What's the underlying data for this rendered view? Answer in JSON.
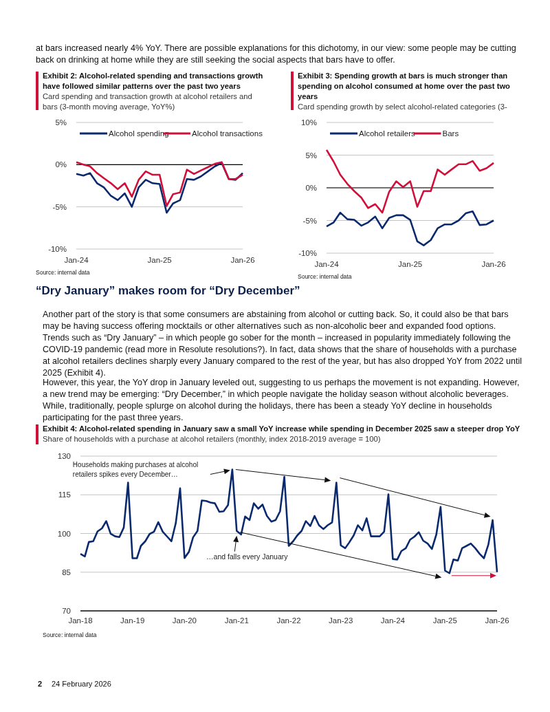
{
  "chart_data": [
    {
      "type": "other",
      "annotations": [
        "at bars increased nearly 4% YoY. There are possible explanations for this dichotomy, in our view: some people may be cutting back on drinking at home while they are still seeking the social aspects that bars have to offer."
      ]
    },
    {
      "type": "line",
      "title": "Exhibit 2: Alcohol-related spending and transactions growth have followed similar patterns over the past two years",
      "subtitle": "Card spending and transaction growth at alcohol retailers and bars (3-month moving average, YoY%)",
      "x": [
        "2024-01",
        "2024-02",
        "2024-03",
        "2024-04",
        "2024-05",
        "2024-06",
        "2024-07",
        "2024-08",
        "2024-09",
        "2024-10",
        "2024-11",
        "2024-12",
        "2025-01",
        "2025-02",
        "2025-03",
        "2025-04",
        "2025-05",
        "2025-06",
        "2025-07",
        "2025-08",
        "2025-09",
        "2025-10",
        "2025-11",
        "2025-12",
        "2026-01"
      ],
      "series": [
        {
          "name": "Alcohol spending",
          "color": "#0b2a6e",
          "values": [
            -1.1,
            -1.3,
            -1.0,
            -2.2,
            -2.7,
            -3.7,
            -4.2,
            -3.4,
            -5.0,
            -2.7,
            -1.8,
            -2.2,
            -2.3,
            -5.7,
            -4.6,
            -4.2,
            -1.7,
            -1.8,
            -1.4,
            -0.8,
            -0.2,
            0.2,
            -1.7,
            -1.8,
            -1.0
          ]
        },
        {
          "name": "Alcohol transactions",
          "color": "#d0103a",
          "values": [
            0.3,
            0,
            -0.2,
            -1.0,
            -1.6,
            -2.2,
            -2.9,
            -2.2,
            -3.8,
            -1.8,
            -0.8,
            -1.2,
            -1.2,
            -4.9,
            -3.5,
            -3.3,
            -0.6,
            -1.1,
            -0.7,
            -0.3,
            0.1,
            0.3,
            -1.7,
            -1.7,
            -1.2
          ]
        }
      ],
      "xlim": [
        "2024-01",
        "2026-01"
      ],
      "xticks": [
        {
          "value": "2024-01",
          "label": "Jan-24"
        },
        {
          "value": "2025-01",
          "label": "Jan-25"
        },
        {
          "value": "2026-01",
          "label": "Jan-26"
        }
      ],
      "ylim": [
        -10,
        5
      ],
      "yticks": [
        {
          "value": -10,
          "label": "-10%"
        },
        {
          "value": -5,
          "label": "-5%"
        },
        {
          "value": 0,
          "label": "0%"
        },
        {
          "value": 5,
          "label": "5%"
        }
      ],
      "ref_lines": [
        {
          "axis": "y",
          "value": 0,
          "color": "#000000"
        }
      ],
      "grid": "y",
      "legend": "top",
      "marker": "none",
      "line_style": "solid",
      "annotations": [
        "Source: internal data"
      ]
    },
    {
      "type": "line",
      "title": "Exhibit 3: Spending growth at bars is much stronger than spending on alcohol consumed at home over the past two years",
      "subtitle": "Card spending growth by select alcohol-related categories (3-month moving average, YoY%)",
      "x": [
        "2024-01",
        "2024-02",
        "2024-03",
        "2024-04",
        "2024-05",
        "2024-06",
        "2024-07",
        "2024-08",
        "2024-09",
        "2024-10",
        "2024-11",
        "2024-12",
        "2025-01",
        "2025-02",
        "2025-03",
        "2025-04",
        "2025-05",
        "2025-06",
        "2025-07",
        "2025-08",
        "2025-09",
        "2025-10",
        "2025-11",
        "2025-12",
        "2026-01"
      ],
      "series": [
        {
          "name": "Alcohol retailers",
          "color": "#0b2a6e",
          "values": [
            -5.9,
            -5.3,
            -3.8,
            -4.8,
            -4.9,
            -5.8,
            -5.3,
            -4.4,
            -6.2,
            -4.6,
            -4.2,
            -4.2,
            -4.9,
            -8.2,
            -8.8,
            -8.0,
            -6.2,
            -5.6,
            -5.6,
            -5.0,
            -3.9,
            -3.6,
            -5.7,
            -5.6,
            -5.0
          ]
        },
        {
          "name": "Bars",
          "color": "#d0103a",
          "values": [
            5.8,
            4.0,
            2.0,
            0.6,
            -0.5,
            -1.5,
            -3.1,
            -2.5,
            -3.8,
            -0.6,
            1.0,
            0.1,
            1.0,
            -2.9,
            -0.5,
            -0.5,
            2.8,
            2.0,
            2.8,
            3.6,
            3.6,
            4.1,
            2.6,
            3.0,
            3.8
          ]
        }
      ],
      "xlim": [
        "2024-01",
        "2026-01"
      ],
      "xticks": [
        {
          "value": "2024-01",
          "label": "Jan-24"
        },
        {
          "value": "2025-01",
          "label": "Jan-25"
        },
        {
          "value": "2026-01",
          "label": "Jan-26"
        }
      ],
      "ylim": [
        -10,
        10
      ],
      "yticks": [
        {
          "value": -10,
          "label": "-10%"
        },
        {
          "value": -5,
          "label": "-5%"
        },
        {
          "value": 0,
          "label": "0%"
        },
        {
          "value": 5,
          "label": "5%"
        },
        {
          "value": 10,
          "label": "10%"
        }
      ],
      "ref_lines": [
        {
          "axis": "y",
          "value": 0,
          "color": "#000000"
        }
      ],
      "grid": "y",
      "legend": "top",
      "marker": "none",
      "line_style": "solid",
      "annotations": [
        "Source: internal data"
      ]
    },
    {
      "type": "other",
      "title": "“Dry January” makes room for “Dry December”",
      "annotations": [
        "Another part of the story is that some consumers are abstaining from alcohol or cutting back. So, it could also be that bars may be having success offering mocktails or other alternatives such as non-alcoholic beer and expanded food options. Trends such as “Dry January” – in which people go sober for the month – increased in popularity immediately following the COVID-19 pandemic (read more in Resolute resolutions?). In fact, data shows that the share of households with a purchase at alcohol retailers declines sharply every January compared to the rest of the year, but has also dropped YoY from 2022 until 2025 (Exhibit 4).",
        "However, this year, the YoY drop in January leveled out, suggesting to us perhaps the movement is not expanding. However, a new trend may be emerging: “Dry December,” in which people navigate the holiday season without alcoholic beverages. While, traditionally, people splurge on alcohol during the holidays, there has been a steady YoY decline in households participating for the past three years."
      ]
    },
    {
      "type": "line",
      "title": "Exhibit 4: Alcohol-related spending in January saw a small YoY increase while spending in December 2025 saw a steeper drop YoY",
      "subtitle": "Share of households with a purchase at alcohol retailers (monthly, index 2018-2019 average = 100)",
      "x": [
        "2018-01",
        "2018-02",
        "2018-03",
        "2018-04",
        "2018-05",
        "2018-06",
        "2018-07",
        "2018-08",
        "2018-09",
        "2018-10",
        "2018-11",
        "2018-12",
        "2019-01",
        "2019-02",
        "2019-03",
        "2019-04",
        "2019-05",
        "2019-06",
        "2019-07",
        "2019-08",
        "2019-09",
        "2019-10",
        "2019-11",
        "2019-12",
        "2020-01",
        "2020-02",
        "2020-03",
        "2020-04",
        "2020-05",
        "2020-06",
        "2020-07",
        "2020-08",
        "2020-09",
        "2020-10",
        "2020-11",
        "2020-12",
        "2021-01",
        "2021-02",
        "2021-03",
        "2021-04",
        "2021-05",
        "2021-06",
        "2021-07",
        "2021-08",
        "2021-09",
        "2021-10",
        "2021-11",
        "2021-12",
        "2022-01",
        "2022-02",
        "2022-03",
        "2022-04",
        "2022-05",
        "2022-06",
        "2022-07",
        "2022-08",
        "2022-09",
        "2022-10",
        "2022-11",
        "2022-12",
        "2023-01",
        "2023-02",
        "2023-03",
        "2023-04",
        "2023-05",
        "2023-06",
        "2023-07",
        "2023-08",
        "2023-09",
        "2023-10",
        "2023-11",
        "2023-12",
        "2024-01",
        "2024-02",
        "2024-03",
        "2024-04",
        "2024-05",
        "2024-06",
        "2024-07",
        "2024-08",
        "2024-09",
        "2024-10",
        "2024-11",
        "2024-12",
        "2025-01",
        "2025-02",
        "2025-03",
        "2025-04",
        "2025-05",
        "2025-06",
        "2025-07",
        "2025-08",
        "2025-09",
        "2025-10",
        "2025-11",
        "2025-12",
        "2026-01"
      ],
      "series": [
        {
          "color": "#0b2a6e",
          "values": [
            92.1,
            91.1,
            96.7,
            97.0,
            100.8,
            102.0,
            104.8,
            99.9,
            98.9,
            98.6,
            102.3,
            119.7,
            90.4,
            90.4,
            95.2,
            97.0,
            99.8,
            100.7,
            104.4,
            100.7,
            98.8,
            97.0,
            104.1,
            117.5,
            90.5,
            92.9,
            98.5,
            101.0,
            112.8,
            112.6,
            112.0,
            111.7,
            108.4,
            108.6,
            111.0,
            124.8,
            101.0,
            99.6,
            106.6,
            105.2,
            111.7,
            109.6,
            111.2,
            106.8,
            104.6,
            105.2,
            108.6,
            122.0,
            95.2,
            97.0,
            99.2,
            101.0,
            104.8,
            102.9,
            106.8,
            103.2,
            101.7,
            103.2,
            104.3,
            119.7,
            95.4,
            94.3,
            96.5,
            99.2,
            103.2,
            101.2,
            105.9,
            98.9,
            98.9,
            98.9,
            100.7,
            115.2,
            90.1,
            89.9,
            93.2,
            94.3,
            97.6,
            98.8,
            100.5,
            97.2,
            96.1,
            94.0,
            99.6,
            110.3,
            85.6,
            84.6,
            89.9,
            89.5,
            94.3,
            95.2,
            96.1,
            94.3,
            92.1,
            90.4,
            95.7,
            105.2,
            85.0
          ]
        }
      ],
      "xlim": [
        "2018-01",
        "2026-01"
      ],
      "xticks": [
        {
          "value": "2018-01",
          "label": "Jan-18"
        },
        {
          "value": "2019-01",
          "label": "Jan-19"
        },
        {
          "value": "2020-01",
          "label": "Jan-20"
        },
        {
          "value": "2021-01",
          "label": "Jan-21"
        },
        {
          "value": "2022-01",
          "label": "Jan-22"
        },
        {
          "value": "2023-01",
          "label": "Jan-23"
        },
        {
          "value": "2024-01",
          "label": "Jan-24"
        },
        {
          "value": "2025-01",
          "label": "Jan-25"
        },
        {
          "value": "2026-01",
          "label": "Jan-26"
        }
      ],
      "ylim": [
        70,
        130
      ],
      "yticks": [
        70,
        85,
        100,
        115,
        130
      ],
      "grid": "y",
      "marker": "none",
      "line_style": "solid",
      "annotations": [
        "Households making purchases at alcohol retailers spikes every December…",
        {
          "text": "…and falls every January",
          "x": "2021-01",
          "y": 101.0
        },
        "Source: internal data"
      ]
    },
    {
      "type": "other",
      "annotations": [
        "2",
        "24 February 2026"
      ]
    }
  ]
}
